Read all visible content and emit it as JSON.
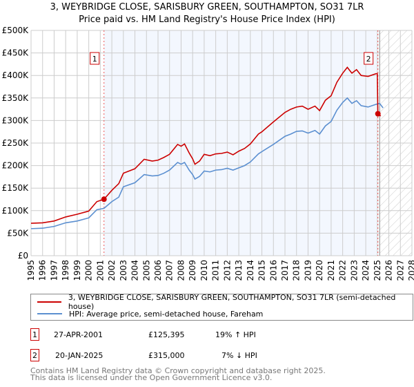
{
  "chart_data": {
    "type": "line",
    "title": "3, WEYBRIDGE CLOSE, SARISBURY GREEN, SOUTHAMPTON, SO31 7LR",
    "subtitle": "Price paid vs. HM Land Registry's House Price Index (HPI)",
    "xlim": [
      1995,
      2028
    ],
    "ylim": [
      0,
      500000
    ],
    "x_ticks": [
      "1995",
      "1996",
      "1997",
      "1998",
      "1999",
      "2000",
      "2001",
      "2002",
      "2003",
      "2004",
      "2005",
      "2006",
      "2007",
      "2008",
      "2009",
      "2010",
      "2011",
      "2012",
      "2013",
      "2014",
      "2015",
      "2016",
      "2017",
      "2018",
      "2019",
      "2020",
      "2021",
      "2022",
      "2023",
      "2024",
      "2025",
      "2026",
      "2027",
      "2028"
    ],
    "y_ticks": [
      {
        "v": 0,
        "l": "£0"
      },
      {
        "v": 50000,
        "l": "£50K"
      },
      {
        "v": 100000,
        "l": "£100K"
      },
      {
        "v": 150000,
        "l": "£150K"
      },
      {
        "v": 200000,
        "l": "£200K"
      },
      {
        "v": 250000,
        "l": "£250K"
      },
      {
        "v": 300000,
        "l": "£300K"
      },
      {
        "v": 350000,
        "l": "£350K"
      },
      {
        "v": 400000,
        "l": "£400K"
      },
      {
        "v": 450000,
        "l": "£450K"
      },
      {
        "v": 500000,
        "l": "£500K"
      }
    ],
    "grid": true,
    "series": [
      {
        "name": "3, WEYBRIDGE CLOSE, SARISBURY GREEN, SOUTHAMPTON, SO31 7LR (semi-detached house)",
        "color": "#cc0000",
        "points": [
          [
            1995,
            72000
          ],
          [
            1996,
            73000
          ],
          [
            1997,
            77000
          ],
          [
            1998,
            86000
          ],
          [
            1999,
            92000
          ],
          [
            2000,
            99000
          ],
          [
            2000.7,
            120000
          ],
          [
            2001.32,
            125395
          ],
          [
            2002,
            145000
          ],
          [
            2002.6,
            160000
          ],
          [
            2003,
            183000
          ],
          [
            2004,
            193000
          ],
          [
            2004.8,
            214000
          ],
          [
            2005.5,
            210000
          ],
          [
            2006,
            212000
          ],
          [
            2006.5,
            218000
          ],
          [
            2007,
            225000
          ],
          [
            2007.7,
            247000
          ],
          [
            2008,
            243000
          ],
          [
            2008.3,
            248000
          ],
          [
            2008.7,
            228000
          ],
          [
            2009,
            215000
          ],
          [
            2009.2,
            203000
          ],
          [
            2009.6,
            210000
          ],
          [
            2010,
            225000
          ],
          [
            2010.5,
            222000
          ],
          [
            2011,
            226000
          ],
          [
            2011.5,
            227000
          ],
          [
            2012,
            230000
          ],
          [
            2012.5,
            224000
          ],
          [
            2013,
            232000
          ],
          [
            2013.5,
            238000
          ],
          [
            2014,
            248000
          ],
          [
            2014.7,
            270000
          ],
          [
            2015,
            275000
          ],
          [
            2016,
            297000
          ],
          [
            2017,
            318000
          ],
          [
            2017.5,
            325000
          ],
          [
            2018,
            330000
          ],
          [
            2018.5,
            332000
          ],
          [
            2019,
            325000
          ],
          [
            2019.6,
            332000
          ],
          [
            2020,
            322000
          ],
          [
            2020.5,
            345000
          ],
          [
            2021,
            355000
          ],
          [
            2021.5,
            385000
          ],
          [
            2022,
            405000
          ],
          [
            2022.4,
            418000
          ],
          [
            2022.8,
            405000
          ],
          [
            2023.2,
            413000
          ],
          [
            2023.6,
            400000
          ],
          [
            2024.2,
            398000
          ],
          [
            2024.9,
            404000
          ],
          [
            2025.0,
            404000
          ],
          [
            2025.05,
            315000
          ],
          [
            2025.3,
            310000
          ]
        ]
      },
      {
        "name": "HPI: Average price, semi-detached house, Fareham",
        "color": "#5b8fd0",
        "points": [
          [
            1995,
            60000
          ],
          [
            1996,
            61000
          ],
          [
            1997,
            65000
          ],
          [
            1998,
            73000
          ],
          [
            1999,
            77000
          ],
          [
            2000,
            84000
          ],
          [
            2000.7,
            102000
          ],
          [
            2001.32,
            105000
          ],
          [
            2002,
            120000
          ],
          [
            2002.6,
            130000
          ],
          [
            2003,
            153000
          ],
          [
            2004,
            162000
          ],
          [
            2004.8,
            180000
          ],
          [
            2005.5,
            177000
          ],
          [
            2006,
            178000
          ],
          [
            2006.5,
            183000
          ],
          [
            2007,
            190000
          ],
          [
            2007.7,
            207000
          ],
          [
            2008,
            203000
          ],
          [
            2008.3,
            207000
          ],
          [
            2008.7,
            190000
          ],
          [
            2009,
            180000
          ],
          [
            2009.2,
            170000
          ],
          [
            2009.6,
            176000
          ],
          [
            2010,
            188000
          ],
          [
            2010.5,
            186000
          ],
          [
            2011,
            190000
          ],
          [
            2011.5,
            191000
          ],
          [
            2012,
            194000
          ],
          [
            2012.5,
            190000
          ],
          [
            2013,
            195000
          ],
          [
            2013.5,
            200000
          ],
          [
            2014,
            208000
          ],
          [
            2014.7,
            226000
          ],
          [
            2015,
            231000
          ],
          [
            2016,
            247000
          ],
          [
            2017,
            265000
          ],
          [
            2017.5,
            270000
          ],
          [
            2018,
            276000
          ],
          [
            2018.5,
            277000
          ],
          [
            2019,
            272000
          ],
          [
            2019.6,
            278000
          ],
          [
            2020,
            270000
          ],
          [
            2020.5,
            288000
          ],
          [
            2021,
            298000
          ],
          [
            2021.5,
            323000
          ],
          [
            2022,
            340000
          ],
          [
            2022.4,
            350000
          ],
          [
            2022.8,
            338000
          ],
          [
            2023.2,
            344000
          ],
          [
            2023.6,
            333000
          ],
          [
            2024.2,
            330000
          ],
          [
            2024.9,
            336000
          ],
          [
            2025.2,
            338000
          ],
          [
            2025.5,
            328000
          ]
        ]
      }
    ],
    "markers": [
      {
        "label": "1",
        "x": 2001.32,
        "y": 125395
      },
      {
        "label": "2",
        "x": 2025.05,
        "y": 315000
      }
    ],
    "shaded_range": [
      2001.32,
      2025.05
    ],
    "forecast_hatch_from": 2025.2,
    "legend_position": "below"
  },
  "legend": [
    "3, WEYBRIDGE CLOSE, SARISBURY GREEN, SOUTHAMPTON, SO31 7LR (semi-detached house)",
    "HPI: Average price, semi-detached house, Fareham"
  ],
  "transactions": [
    {
      "num": "1",
      "date": "27-APR-2001",
      "price": "£125,395",
      "hpi": "19% ↑ HPI"
    },
    {
      "num": "2",
      "date": "20-JAN-2025",
      "price": "£315,000",
      "hpi": "7% ↓ HPI"
    }
  ],
  "footer": [
    "Contains HM Land Registry data © Crown copyright and database right 2025.",
    "This data is licensed under the Open Government Licence v3.0."
  ]
}
